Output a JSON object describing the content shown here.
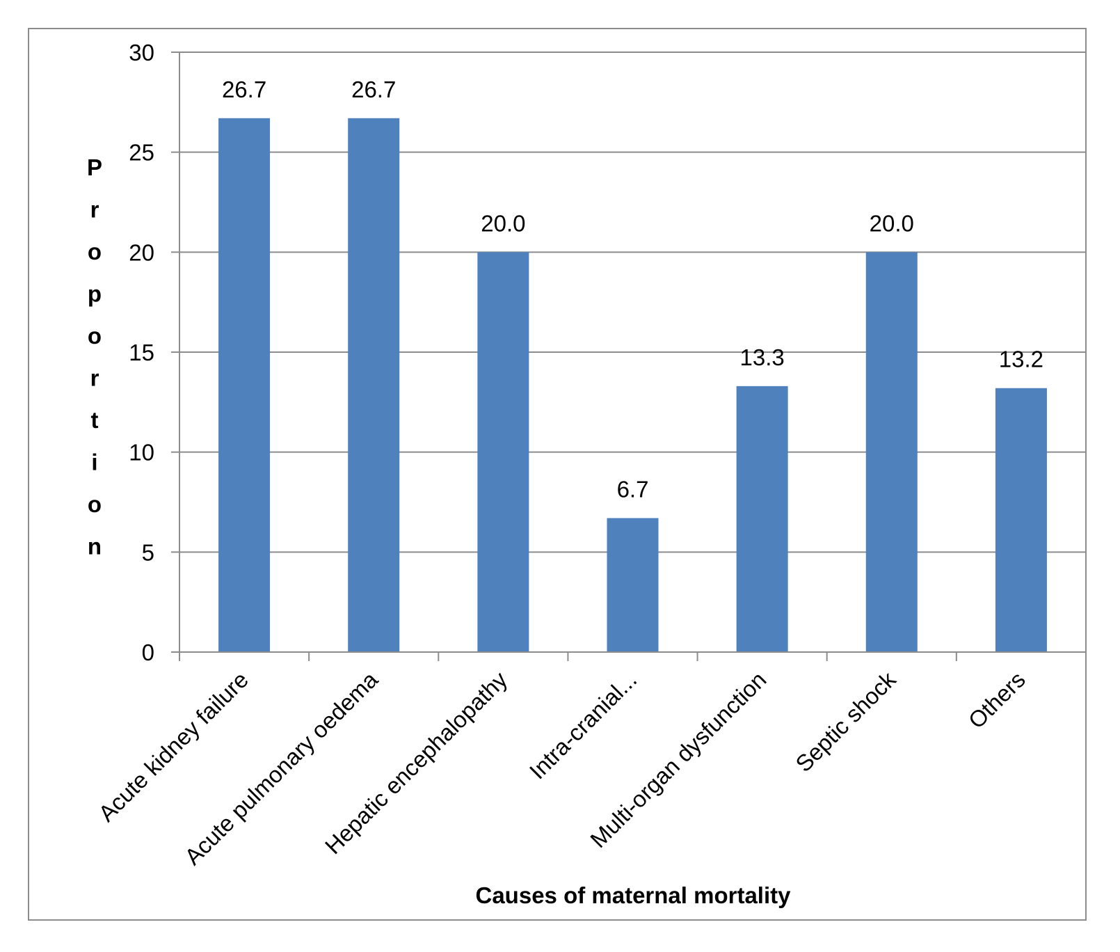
{
  "chart_data": {
    "type": "bar",
    "title": "",
    "xlabel": "Causes of maternal mortality",
    "ylabel": "Proportion",
    "categories": [
      "Acute kidney failure",
      "Acute pulmonary oedema",
      "Hepatic encephalopathy",
      "Intra-cranial...",
      "Multi-organ dysfunction",
      "Septic shock",
      "Others"
    ],
    "values": [
      26.7,
      26.7,
      20.0,
      6.7,
      13.3,
      20.0,
      13.2
    ],
    "data_labels": [
      "26.7",
      "26.7",
      "20.0",
      "6.7",
      "13.3",
      "20.0",
      "13.2"
    ],
    "ylim": [
      0,
      30
    ],
    "yticks": [
      0,
      5,
      10,
      15,
      20,
      25,
      30
    ],
    "grid": true,
    "legend": "none",
    "colors": {
      "bar": "#4f81bd",
      "grid": "#8c8c8c",
      "axis": "#8c8c8c",
      "frame": "#8c8c8c"
    }
  }
}
